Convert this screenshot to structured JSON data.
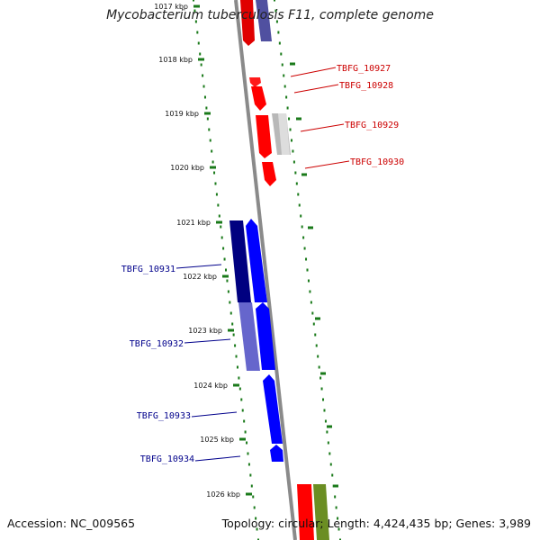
{
  "title": "Mycobacterium tuberculosis F11, complete genome",
  "footer": {
    "accession": "Accession: NC_009565",
    "topology": "Topology: circular; Length: 4,424,435 bp; Genes: 3,989"
  },
  "colors": {
    "forward_strand": "#0000ff",
    "reverse_strand": "#ff0000",
    "tick_dots": "#1a7a1a",
    "backbone": "#8a8a8a",
    "gene_other": "#6b8e23"
  },
  "kbp_labels": [
    "1017 kbp",
    "1018 kbp",
    "1019 kbp",
    "1020 kbp",
    "1021 kbp",
    "1022 kbp",
    "1023 kbp",
    "1024 kbp",
    "1025 kbp",
    "1026 kbp"
  ],
  "gene_labels": [
    {
      "text": "TBFG_10927",
      "color": "#cc0000"
    },
    {
      "text": "TBFG_10928",
      "color": "#cc0000"
    },
    {
      "text": "TBFG_10929",
      "color": "#cc0000"
    },
    {
      "text": "TBFG_10930",
      "color": "#cc0000"
    },
    {
      "text": "TBFG_10931",
      "color": "#00008b"
    },
    {
      "text": "TBFG_10932",
      "color": "#00008b"
    },
    {
      "text": "TBFG_10933",
      "color": "#00008b"
    },
    {
      "text": "TBFG_10934",
      "color": "#00008b"
    }
  ]
}
